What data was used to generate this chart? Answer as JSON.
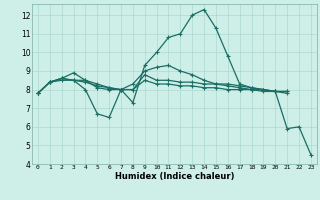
{
  "title": "",
  "xlabel": "Humidex (Indice chaleur)",
  "ylabel": "",
  "bg_color": "#ceeee8",
  "line_color": "#1a6e64",
  "grid_color": "#aed8d0",
  "xlim": [
    -0.5,
    23.5
  ],
  "ylim": [
    4,
    12.6
  ],
  "yticks": [
    4,
    5,
    6,
    7,
    8,
    9,
    10,
    11,
    12
  ],
  "xticks": [
    0,
    1,
    2,
    3,
    4,
    5,
    6,
    7,
    8,
    9,
    10,
    11,
    12,
    13,
    14,
    15,
    16,
    17,
    18,
    19,
    20,
    21,
    22,
    23
  ],
  "series": [
    {
      "x": [
        0,
        1,
        2,
        3,
        4,
        5,
        6,
        7,
        8,
        9,
        10,
        11,
        12,
        13,
        14,
        15,
        16,
        17,
        18,
        19,
        20,
        21,
        22,
        23
      ],
      "y": [
        7.8,
        8.4,
        8.6,
        8.5,
        8.0,
        6.7,
        6.5,
        8.0,
        7.3,
        9.3,
        10.0,
        10.8,
        11.0,
        12.0,
        12.3,
        11.3,
        9.8,
        8.3,
        8.1,
        8.0,
        7.9,
        5.9,
        6.0,
        4.5
      ]
    },
    {
      "x": [
        0,
        1,
        2,
        3,
        4,
        5,
        6,
        7,
        8,
        9,
        10,
        11,
        12,
        13,
        14,
        15,
        16,
        17,
        18,
        19,
        20,
        21
      ],
      "y": [
        7.8,
        8.4,
        8.6,
        8.9,
        8.5,
        8.1,
        8.0,
        8.0,
        8.3,
        9.0,
        9.2,
        9.3,
        9.0,
        8.8,
        8.5,
        8.3,
        8.3,
        8.2,
        8.1,
        8.0,
        7.9,
        7.9
      ]
    },
    {
      "x": [
        0,
        1,
        2,
        3,
        4,
        5,
        6,
        7,
        8,
        9,
        10,
        11,
        12,
        13,
        14,
        15,
        16,
        17,
        18,
        19,
        20,
        21
      ],
      "y": [
        7.8,
        8.4,
        8.6,
        8.5,
        8.5,
        8.3,
        8.1,
        8.0,
        8.0,
        8.5,
        8.3,
        8.3,
        8.2,
        8.2,
        8.1,
        8.1,
        8.0,
        8.0,
        8.0,
        7.9,
        7.9,
        7.8
      ]
    },
    {
      "x": [
        0,
        1,
        2,
        3,
        4,
        5,
        6,
        7,
        8,
        9,
        10,
        11,
        12,
        13,
        14,
        15,
        16,
        17,
        18,
        19,
        20,
        21
      ],
      "y": [
        7.8,
        8.4,
        8.5,
        8.5,
        8.4,
        8.2,
        8.1,
        8.0,
        8.0,
        8.8,
        8.5,
        8.5,
        8.4,
        8.4,
        8.3,
        8.3,
        8.2,
        8.1,
        8.0,
        8.0,
        7.9,
        7.9
      ]
    }
  ]
}
